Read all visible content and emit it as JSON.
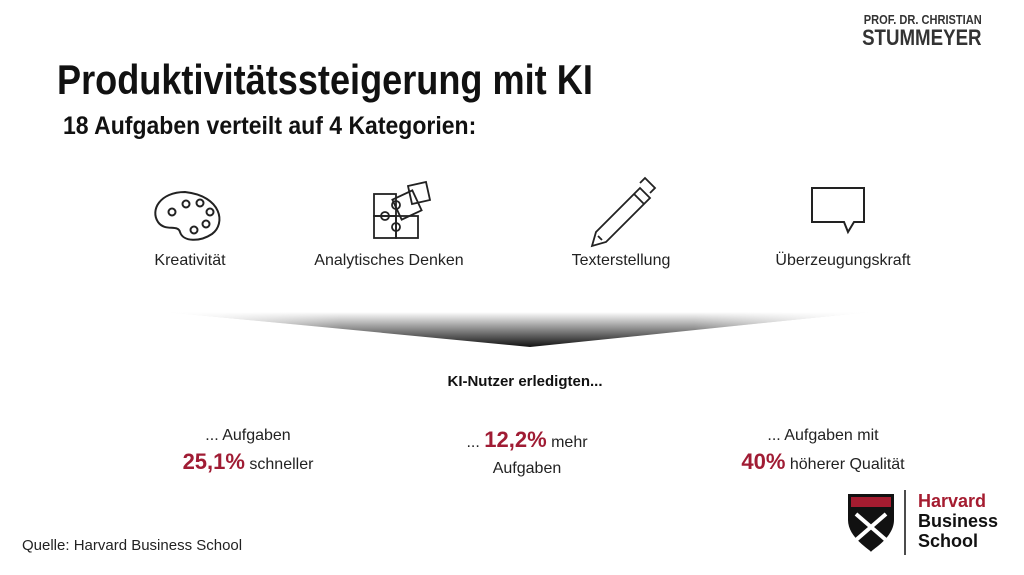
{
  "brand": {
    "line1": "PROF. DR. CHRISTIAN",
    "line2": "STUMMEYER"
  },
  "header": {
    "title": "Produktivitätssteigerung mit KI",
    "subtitle": "18 Aufgaben verteilt auf 4 Kategorien:"
  },
  "categories": [
    {
      "label": "Kreativität"
    },
    {
      "label": "Analytisches Denken"
    },
    {
      "label": "Texterstellung"
    },
    {
      "label": "Überzeugungskraft"
    }
  ],
  "results": {
    "heading": "KI-Nutzer erledigten...",
    "items": [
      {
        "before": "... Aufgaben",
        "highlight": "25,1%",
        "after": "schneller"
      },
      {
        "before": "...",
        "highlight": "12,2%",
        "after": "mehr",
        "line2": "Aufgaben"
      },
      {
        "before": "... Aufgaben mit",
        "highlight": "40%",
        "after": "höherer Qualität"
      }
    ]
  },
  "source": "Quelle: Harvard Business School",
  "logo": {
    "line1": "Harvard",
    "line2": "Business",
    "line3": "School"
  }
}
